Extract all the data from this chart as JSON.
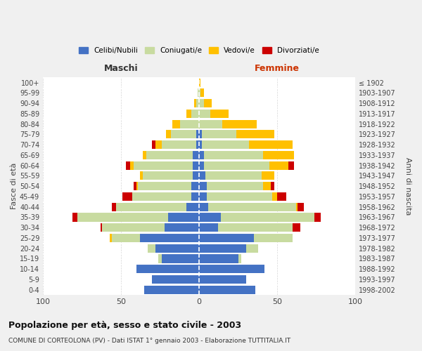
{
  "age_groups": [
    "0-4",
    "5-9",
    "10-14",
    "15-19",
    "20-24",
    "25-29",
    "30-34",
    "35-39",
    "40-44",
    "45-49",
    "50-54",
    "55-59",
    "60-64",
    "65-69",
    "70-74",
    "75-79",
    "80-84",
    "85-89",
    "90-94",
    "95-99",
    "100+"
  ],
  "birth_years": [
    "1998-2002",
    "1993-1997",
    "1988-1992",
    "1983-1987",
    "1978-1982",
    "1973-1977",
    "1968-1972",
    "1963-1967",
    "1958-1962",
    "1953-1957",
    "1948-1952",
    "1943-1947",
    "1938-1942",
    "1933-1937",
    "1928-1932",
    "1923-1927",
    "1918-1922",
    "1913-1917",
    "1908-1912",
    "1903-1907",
    "≤ 1902"
  ],
  "male": {
    "celibi": [
      35,
      30,
      40,
      24,
      28,
      38,
      22,
      20,
      8,
      5,
      5,
      4,
      4,
      4,
      2,
      2,
      0,
      0,
      0,
      0,
      0
    ],
    "coniugati": [
      0,
      0,
      0,
      2,
      5,
      18,
      40,
      58,
      45,
      38,
      34,
      32,
      38,
      30,
      22,
      16,
      12,
      5,
      2,
      1,
      0
    ],
    "vedovi": [
      0,
      0,
      0,
      0,
      0,
      1,
      0,
      0,
      0,
      0,
      1,
      2,
      2,
      2,
      4,
      3,
      5,
      3,
      1,
      0,
      0
    ],
    "divorziati": [
      0,
      0,
      0,
      0,
      0,
      0,
      1,
      3,
      3,
      6,
      2,
      0,
      3,
      0,
      2,
      0,
      0,
      0,
      0,
      0,
      0
    ]
  },
  "female": {
    "nubili": [
      36,
      30,
      42,
      25,
      30,
      35,
      12,
      14,
      6,
      5,
      5,
      4,
      3,
      3,
      2,
      2,
      0,
      0,
      0,
      0,
      0
    ],
    "coniugate": [
      0,
      0,
      0,
      2,
      8,
      25,
      48,
      60,
      56,
      42,
      36,
      36,
      42,
      38,
      30,
      22,
      15,
      7,
      3,
      1,
      0
    ],
    "vedove": [
      0,
      0,
      0,
      0,
      0,
      0,
      0,
      0,
      1,
      3,
      5,
      8,
      12,
      20,
      28,
      24,
      22,
      12,
      5,
      2,
      1
    ],
    "divorziate": [
      0,
      0,
      0,
      0,
      0,
      0,
      5,
      4,
      4,
      6,
      2,
      0,
      4,
      0,
      0,
      0,
      0,
      0,
      0,
      0,
      0
    ]
  },
  "colors": {
    "celibi": "#4472C4",
    "coniugati": "#c8dba0",
    "vedovi": "#ffc000",
    "divorziati": "#cc0000"
  },
  "title": "Popolazione per età, sesso e stato civile - 2003",
  "subtitle": "COMUNE DI CORTEOLONA (PV) - Dati ISTAT 1° gennaio 2003 - Elaborazione TUTTITALIA.IT",
  "xlabel_left": "Maschi",
  "xlabel_right": "Femmine",
  "ylabel_left": "Fasce di età",
  "ylabel_right": "Anni di nascita",
  "xlim": 100,
  "bg_color": "#f0f0f0",
  "plot_bg": "#ffffff"
}
